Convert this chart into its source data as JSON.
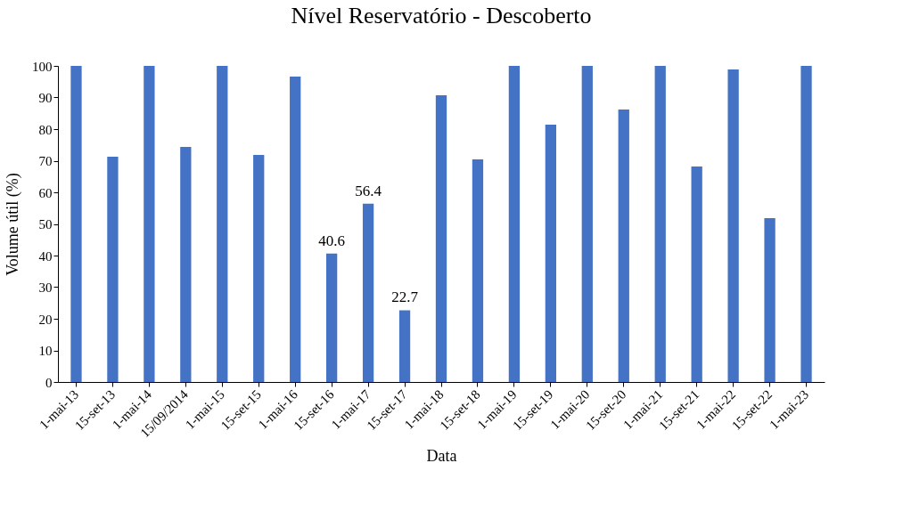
{
  "chart_data": {
    "type": "bar",
    "title": "Nível Reservatório  - Descoberto",
    "xlabel": "Data",
    "ylabel": "Volume útil (%)",
    "categories": [
      "1-mai-13",
      "15-set-13",
      "1-mai-14",
      "15/09/2014",
      "1-mai-15",
      "15-set-15",
      "1-mai-16",
      "15-set-16",
      "1-mai-17",
      "15-set-17",
      "1-mai-18",
      "15-set-18",
      "1-mai-19",
      "15-set-19",
      "1-mai-20",
      "15-set-20",
      "1-mai-21",
      "15-set-21",
      "1-mai-22",
      "15-set-22",
      "1-mai-23"
    ],
    "values": [
      100,
      71.3,
      100,
      74.4,
      100,
      71.8,
      96.6,
      40.6,
      56.4,
      22.7,
      90.7,
      70.4,
      100,
      81.4,
      100,
      86.2,
      100,
      68.2,
      98.9,
      51.8,
      100
    ],
    "value_labels": [
      null,
      null,
      null,
      null,
      null,
      null,
      null,
      "40.6",
      "56.4",
      "22.7",
      null,
      null,
      null,
      null,
      null,
      null,
      null,
      null,
      null,
      null,
      null
    ],
    "color": "#4472c4",
    "ylim": [
      0,
      100
    ],
    "yticks": [
      0,
      10,
      20,
      30,
      40,
      50,
      60,
      70,
      80,
      90,
      100
    ],
    "grid": false
  }
}
